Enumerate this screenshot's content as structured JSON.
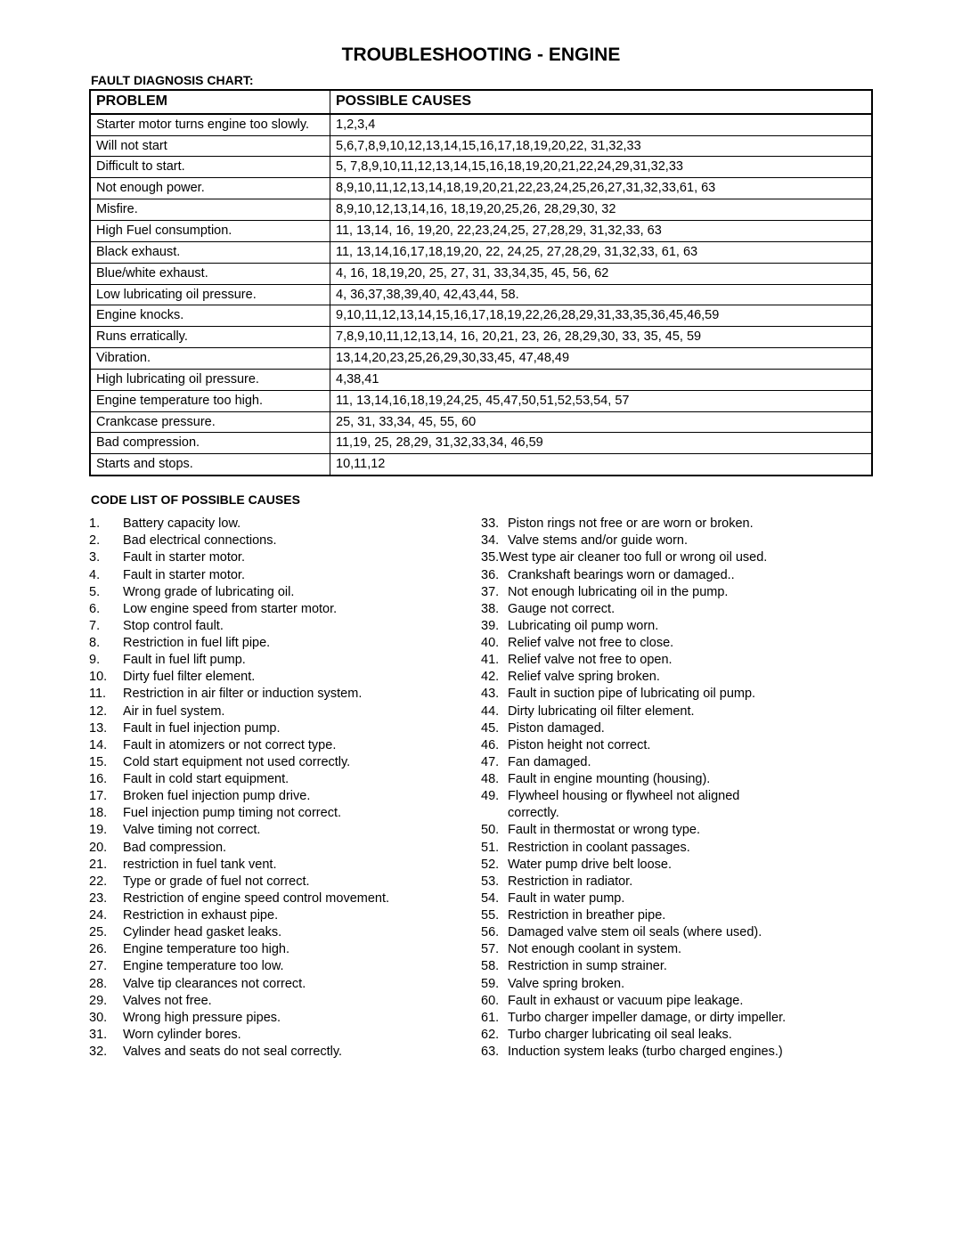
{
  "title": "TROUBLESHOOTING - ENGINE",
  "subtitle": "FAULT DIAGNOSIS CHART:",
  "table": {
    "headers": [
      "PROBLEM",
      "POSSIBLE CAUSES"
    ],
    "rows": [
      [
        "Starter motor turns engine too slowly.",
        "1,2,3,4"
      ],
      [
        "Will not start",
        "5,6,7,8,9,10,12,13,14,15,16,17,18,19,20,22, 31,32,33"
      ],
      [
        "Difficult to start.",
        "5, 7,8,9,10,11,12,13,14,15,16,18,19,20,21,22,24,29,31,32,33"
      ],
      [
        "Not enough power.",
        "8,9,10,11,12,13,14,18,19,20,21,22,23,24,25,26,27,31,32,33,61, 63"
      ],
      [
        "Misfire.",
        "8,9,10,12,13,14,16, 18,19,20,25,26, 28,29,30, 32"
      ],
      [
        "High Fuel consumption.",
        "11, 13,14, 16, 19,20, 22,23,24,25, 27,28,29, 31,32,33, 63"
      ],
      [
        "Black exhaust.",
        "11, 13,14,16,17,18,19,20, 22, 24,25, 27,28,29, 31,32,33, 61, 63"
      ],
      [
        "Blue/white exhaust.",
        "4, 16, 18,19,20, 25, 27, 31, 33,34,35, 45, 56, 62"
      ],
      [
        "Low lubricating oil pressure.",
        "4, 36,37,38,39,40, 42,43,44, 58."
      ],
      [
        "Engine knocks.",
        "9,10,11,12,13,14,15,16,17,18,19,22,26,28,29,31,33,35,36,45,46,59"
      ],
      [
        "Runs erratically.",
        "7,8,9,10,11,12,13,14, 16, 20,21, 23, 26, 28,29,30, 33, 35, 45, 59"
      ],
      [
        "Vibration.",
        "13,14,20,23,25,26,29,30,33,45, 47,48,49"
      ],
      [
        "High lubricating oil pressure.",
        "4,38,41"
      ],
      [
        "Engine temperature too high.",
        "11, 13,14,16,18,19,24,25, 45,47,50,51,52,53,54, 57"
      ],
      [
        "Crankcase pressure.",
        "25, 31, 33,34, 45, 55, 60"
      ],
      [
        "Bad compression.",
        " 11,19, 25, 28,29, 31,32,33,34, 46,59"
      ],
      [
        "Starts and stops.",
        " 10,11,12"
      ]
    ]
  },
  "codesTitle": "CODE LIST OF POSSIBLE CAUSES",
  "codesLeft": [
    {
      "n": "1.",
      "t": "Battery capacity low."
    },
    {
      "n": "2.",
      "t": "Bad electrical connections."
    },
    {
      "n": "3.",
      "t": "Fault in starter motor."
    },
    {
      "n": "4.",
      "t": "Fault in starter motor."
    },
    {
      "n": "5.",
      "t": "Wrong grade of lubricating oil."
    },
    {
      "n": "6.",
      "t": "Low engine speed from starter motor."
    },
    {
      "n": "7.",
      "t": "Stop control fault."
    },
    {
      "n": "8.",
      "t": "Restriction in fuel lift pipe."
    },
    {
      "n": "9.",
      "t": "Fault in fuel lift pump."
    },
    {
      "n": "10.",
      "t": "Dirty fuel filter element."
    },
    {
      "n": "11.",
      "t": "Restriction in air filter or induction system."
    },
    {
      "n": "12.",
      "t": "Air in fuel system."
    },
    {
      "n": "13.",
      "t": "Fault in fuel injection pump."
    },
    {
      "n": "14.",
      "t": "Fault in atomizers or not correct type."
    },
    {
      "n": "15.",
      "t": "Cold start equipment not used correctly."
    },
    {
      "n": "16.",
      "t": "Fault in cold start equipment."
    },
    {
      "n": "17.",
      "t": "Broken fuel injection pump drive."
    },
    {
      "n": "18.",
      "t": "Fuel injection pump timing not correct."
    },
    {
      "n": "19.",
      "t": "Valve timing not correct."
    },
    {
      "n": "20.",
      "t": "Bad compression."
    },
    {
      "n": "21.",
      "t": "restriction in fuel tank vent."
    },
    {
      "n": "22.",
      "t": "Type or grade of fuel not correct."
    },
    {
      "n": "23.",
      "t": "Restriction of engine speed control movement."
    },
    {
      "n": "24.",
      "t": "Restriction in exhaust pipe."
    },
    {
      "n": "25.",
      "t": "Cylinder head gasket leaks."
    },
    {
      "n": "26.",
      "t": "Engine temperature too high."
    },
    {
      "n": "27.",
      "t": "Engine temperature too low."
    },
    {
      "n": "28.",
      "t": "Valve tip clearances not correct."
    },
    {
      "n": "29.",
      "t": "Valves not free."
    },
    {
      "n": "30.",
      "t": "Wrong high pressure pipes."
    },
    {
      "n": "31.",
      "t": "Worn cylinder bores."
    },
    {
      "n": "32.",
      "t": "Valves and seats do not seal correctly."
    }
  ],
  "codesRight": [
    {
      "n": "33.",
      "t": "Piston rings not free or are worn or broken."
    },
    {
      "n": "34.",
      "t": "Valve stems and/or guide worn."
    },
    {
      "n": "35.",
      "t": "West type air cleaner too full or wrong oil used.",
      "nospace": true
    },
    {
      "n": "36.",
      "t": "Crankshaft bearings worn or damaged.."
    },
    {
      "n": "37.",
      "t": "Not enough lubricating oil in the pump."
    },
    {
      "n": "38.",
      "t": "Gauge not correct."
    },
    {
      "n": "39.",
      "t": "Lubricating oil pump worn."
    },
    {
      "n": "40.",
      "t": "Relief valve not free to close."
    },
    {
      "n": "41.",
      "t": "Relief valve not free to open."
    },
    {
      "n": "42.",
      "t": "Relief valve spring broken."
    },
    {
      "n": "43.",
      "t": "Fault in suction pipe of lubricating oil pump."
    },
    {
      "n": "44.",
      "t": "Dirty lubricating oil filter element."
    },
    {
      "n": "45.",
      "t": "Piston damaged."
    },
    {
      "n": "46.",
      "t": "Piston height not correct."
    },
    {
      "n": "47.",
      "t": "Fan damaged."
    },
    {
      "n": "48.",
      "t": "Fault in engine mounting (housing)."
    },
    {
      "n": "49.",
      "t": "Flywheel housing or flywheel not aligned"
    },
    {
      "n": "",
      "t": "correctly.",
      "cont": true
    },
    {
      "n": "50.",
      "t": "Fault in thermostat or wrong type."
    },
    {
      "n": "51.",
      "t": "Restriction in coolant passages."
    },
    {
      "n": "52.",
      "t": "Water pump drive belt loose."
    },
    {
      "n": "53.",
      "t": "Restriction in radiator."
    },
    {
      "n": "54.",
      "t": "Fault in water pump."
    },
    {
      "n": "55.",
      "t": "Restriction in breather pipe."
    },
    {
      "n": "56.",
      "t": "Damaged valve stem oil seals (where used)."
    },
    {
      "n": "57.",
      "t": "Not enough coolant in system."
    },
    {
      "n": "58.",
      "t": "Restriction in sump strainer."
    },
    {
      "n": "59.",
      "t": "Valve spring broken."
    },
    {
      "n": "60.",
      "t": "Fault in exhaust or vacuum pipe leakage."
    },
    {
      "n": "61.",
      "t": "Turbo charger impeller damage, or dirty impeller."
    },
    {
      "n": "62.",
      "t": "Turbo charger lubricating oil seal leaks."
    },
    {
      "n": " 63.",
      "t": "Induction system leaks (turbo charged engines.)"
    }
  ]
}
